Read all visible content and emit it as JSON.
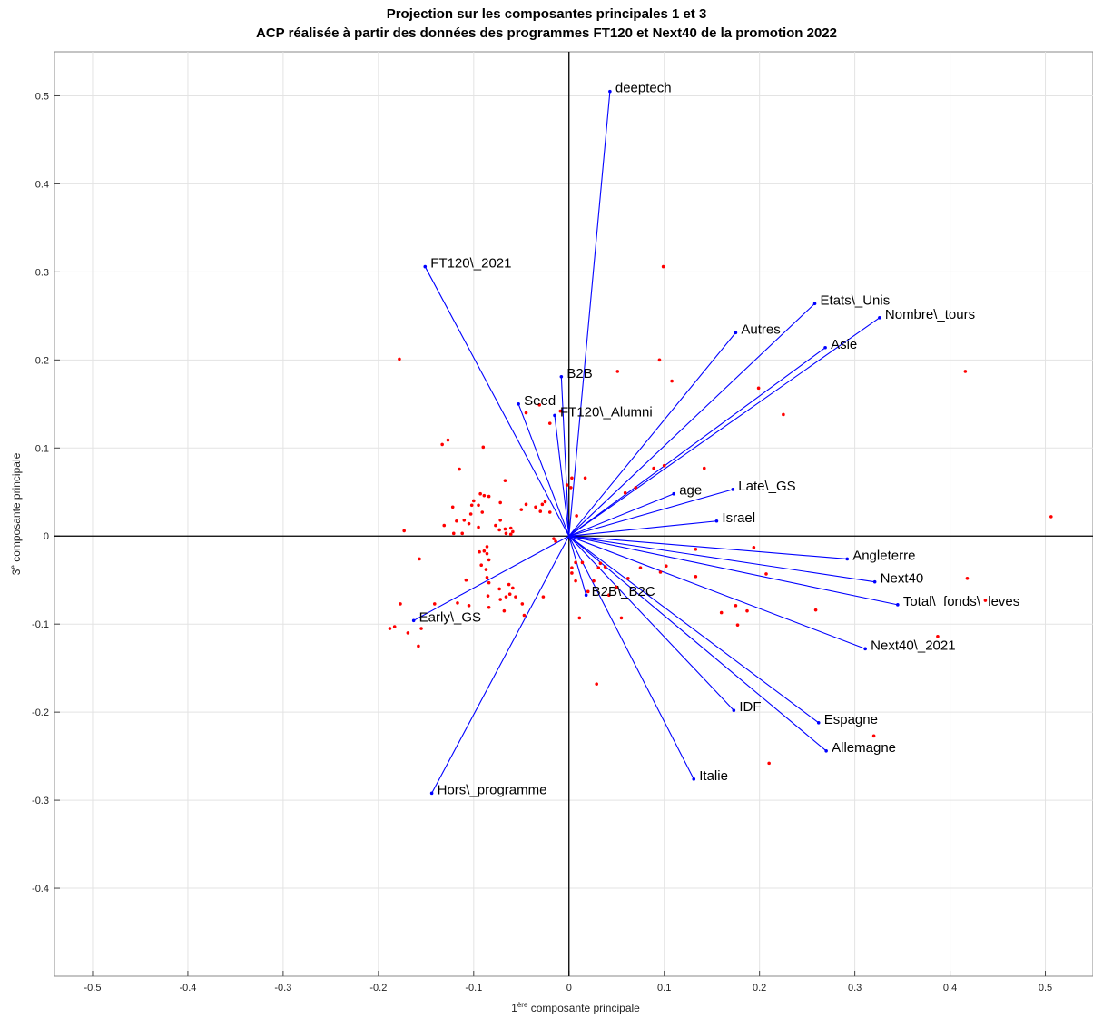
{
  "chart_data": {
    "type": "scatter",
    "title": "Projection sur les composantes principales 1 et 3",
    "subtitle": "ACP réalisée à partir des données des programmes FT120 et Next40 de la promotion 2022",
    "xlabel_prefix": "1",
    "xlabel_sup": "ère",
    "xlabel_rest": " composante principale",
    "ylabel_prefix": "3",
    "ylabel_sup": "e",
    "ylabel_rest": " composante principale",
    "xlim": [
      -0.54,
      0.55
    ],
    "ylim": [
      -0.5,
      0.55
    ],
    "grid": true,
    "x_ticks": [
      -0.5,
      -0.4,
      -0.3,
      -0.2,
      -0.1,
      0,
      0.1,
      0.2,
      0.3,
      0.4,
      0.5
    ],
    "x_tick_labels": [
      "-0.5",
      "-0.4",
      "-0.3",
      "-0.2",
      "-0.1",
      "0",
      "0.1",
      "0.2",
      "0.3",
      "0.4",
      "0.5"
    ],
    "y_ticks": [
      -0.4,
      -0.3,
      -0.2,
      -0.1,
      0,
      0.1,
      0.2,
      0.3,
      0.4,
      0.5
    ],
    "y_tick_labels": [
      "-0.4",
      "-0.3",
      "-0.2",
      "-0.1",
      "0",
      "0.1",
      "0.2",
      "0.3",
      "0.4",
      "0.5"
    ],
    "vector_color": "#0000ff",
    "point_color": "#ff0000",
    "vectors": [
      {
        "label": "deeptech",
        "x": 0.043,
        "y": 0.505
      },
      {
        "label": "FT120\\_2021",
        "x": -0.151,
        "y": 0.306
      },
      {
        "label": "Etats\\_Unis",
        "x": 0.258,
        "y": 0.264
      },
      {
        "label": "Nombre\\_tours",
        "x": 0.326,
        "y": 0.248
      },
      {
        "label": "Autres",
        "x": 0.175,
        "y": 0.231
      },
      {
        "label": "Asie",
        "x": 0.269,
        "y": 0.214
      },
      {
        "label": "B2B",
        "x": -0.008,
        "y": 0.181
      },
      {
        "label": "Seed",
        "x": -0.053,
        "y": 0.15
      },
      {
        "label": "FT120\\_Alumni",
        "x": -0.015,
        "y": 0.137
      },
      {
        "label": "age",
        "x": 0.11,
        "y": 0.048
      },
      {
        "label": "Late\\_GS",
        "x": 0.172,
        "y": 0.053
      },
      {
        "label": "Israel",
        "x": 0.155,
        "y": 0.017
      },
      {
        "label": "Angleterre",
        "x": 0.292,
        "y": -0.026
      },
      {
        "label": "Next40",
        "x": 0.321,
        "y": -0.052
      },
      {
        "label": "Total\\_fonds\\_leves",
        "x": 0.345,
        "y": -0.078
      },
      {
        "label": "Next40\\_2021",
        "x": 0.311,
        "y": -0.128
      },
      {
        "label": "B2B\\_B2C",
        "x": 0.018,
        "y": -0.067
      },
      {
        "label": "Early\\_GS",
        "x": -0.163,
        "y": -0.096
      },
      {
        "label": "IDF",
        "x": 0.173,
        "y": -0.198
      },
      {
        "label": "Espagne",
        "x": 0.262,
        "y": -0.212
      },
      {
        "label": "Allemagne",
        "x": 0.27,
        "y": -0.244
      },
      {
        "label": "Italie",
        "x": 0.131,
        "y": -0.276
      },
      {
        "label": "Hors\\_programme",
        "x": -0.144,
        "y": -0.292
      }
    ],
    "points": [
      [
        0.099,
        0.306
      ],
      [
        -0.178,
        0.201
      ],
      [
        0.095,
        0.2
      ],
      [
        0.416,
        0.187
      ],
      [
        0.051,
        0.187
      ],
      [
        0.108,
        0.176
      ],
      [
        0.199,
        0.168
      ],
      [
        0.225,
        0.138
      ],
      [
        -0.031,
        0.149
      ],
      [
        -0.045,
        0.14
      ],
      [
        -0.009,
        0.142
      ],
      [
        -0.02,
        0.128
      ],
      [
        -0.127,
        0.109
      ],
      [
        -0.133,
        0.104
      ],
      [
        -0.09,
        0.101
      ],
      [
        0.142,
        0.077
      ],
      [
        0.1,
        0.08
      ],
      [
        0.089,
        0.077
      ],
      [
        -0.115,
        0.076
      ],
      [
        0.003,
        0.066
      ],
      [
        0.017,
        0.066
      ],
      [
        -0.067,
        0.063
      ],
      [
        0.07,
        0.055
      ],
      [
        -0.002,
        0.058
      ],
      [
        0.002,
        0.055
      ],
      [
        0.059,
        0.049
      ],
      [
        -0.093,
        0.048
      ],
      [
        -0.089,
        0.046
      ],
      [
        -0.084,
        0.045
      ],
      [
        -0.1,
        0.04
      ],
      [
        -0.102,
        0.035
      ],
      [
        -0.072,
        0.038
      ],
      [
        -0.095,
        0.035
      ],
      [
        -0.122,
        0.033
      ],
      [
        -0.045,
        0.036
      ],
      [
        -0.035,
        0.033
      ],
      [
        -0.025,
        0.039
      ],
      [
        -0.028,
        0.036
      ],
      [
        -0.05,
        0.03
      ],
      [
        -0.03,
        0.028
      ],
      [
        -0.091,
        0.027
      ],
      [
        -0.103,
        0.025
      ],
      [
        -0.02,
        0.027
      ],
      [
        0.008,
        0.023
      ],
      [
        -0.072,
        0.018
      ],
      [
        -0.11,
        0.018
      ],
      [
        -0.118,
        0.017
      ],
      [
        -0.131,
        0.012
      ],
      [
        -0.105,
        0.014
      ],
      [
        -0.077,
        0.012
      ],
      [
        -0.095,
        0.01
      ],
      [
        -0.067,
        0.008
      ],
      [
        -0.073,
        0.007
      ],
      [
        -0.061,
        0.009
      ],
      [
        -0.059,
        0.005
      ],
      [
        -0.061,
        0.002
      ],
      [
        -0.173,
        0.006
      ],
      [
        -0.121,
        0.003
      ],
      [
        -0.112,
        0.003
      ],
      [
        -0.066,
        0.003
      ],
      [
        -0.016,
        -0.003
      ],
      [
        -0.014,
        -0.006
      ],
      [
        0.506,
        0.022
      ],
      [
        -0.086,
        -0.012
      ],
      [
        -0.089,
        -0.017
      ],
      [
        -0.094,
        -0.018
      ],
      [
        -0.086,
        -0.02
      ],
      [
        -0.084,
        -0.027
      ],
      [
        -0.092,
        -0.033
      ],
      [
        -0.087,
        -0.038
      ],
      [
        -0.157,
        -0.026
      ],
      [
        -0.086,
        -0.047
      ],
      [
        -0.108,
        -0.05
      ],
      [
        -0.084,
        -0.053
      ],
      [
        -0.063,
        -0.055
      ],
      [
        -0.059,
        -0.059
      ],
      [
        -0.073,
        -0.06
      ],
      [
        -0.062,
        -0.066
      ],
      [
        -0.085,
        -0.068
      ],
      [
        -0.072,
        -0.072
      ],
      [
        -0.066,
        -0.069
      ],
      [
        -0.056,
        -0.069
      ],
      [
        -0.049,
        -0.077
      ],
      [
        -0.027,
        -0.069
      ],
      [
        -0.117,
        -0.076
      ],
      [
        -0.141,
        -0.077
      ],
      [
        -0.105,
        -0.079
      ],
      [
        -0.084,
        -0.081
      ],
      [
        -0.068,
        -0.085
      ],
      [
        -0.047,
        -0.09
      ],
      [
        -0.177,
        -0.077
      ],
      [
        -0.188,
        -0.105
      ],
      [
        -0.183,
        -0.103
      ],
      [
        -0.169,
        -0.11
      ],
      [
        -0.155,
        -0.105
      ],
      [
        -0.158,
        -0.125
      ],
      [
        0.133,
        -0.015
      ],
      [
        0.194,
        -0.013
      ],
      [
        0.207,
        -0.043
      ],
      [
        0.075,
        -0.036
      ],
      [
        0.102,
        -0.034
      ],
      [
        0.096,
        -0.041
      ],
      [
        0.133,
        -0.046
      ],
      [
        0.062,
        -0.048
      ],
      [
        0.05,
        -0.058
      ],
      [
        0.014,
        -0.03
      ],
      [
        0.007,
        -0.03
      ],
      [
        0.033,
        -0.031
      ],
      [
        0.031,
        -0.036
      ],
      [
        0.038,
        -0.035
      ],
      [
        0.003,
        -0.036
      ],
      [
        0.003,
        -0.042
      ],
      [
        0.007,
        -0.051
      ],
      [
        0.026,
        -0.051
      ],
      [
        0.02,
        -0.063
      ],
      [
        0.042,
        -0.067
      ],
      [
        0.055,
        -0.093
      ],
      [
        0.011,
        -0.093
      ],
      [
        0.16,
        -0.087
      ],
      [
        0.175,
        -0.079
      ],
      [
        0.187,
        -0.085
      ],
      [
        0.177,
        -0.101
      ],
      [
        0.259,
        -0.084
      ],
      [
        0.418,
        -0.048
      ],
      [
        0.437,
        -0.073
      ],
      [
        0.387,
        -0.114
      ],
      [
        0.32,
        -0.227
      ],
      [
        0.21,
        -0.258
      ],
      [
        0.029,
        -0.168
      ]
    ]
  }
}
